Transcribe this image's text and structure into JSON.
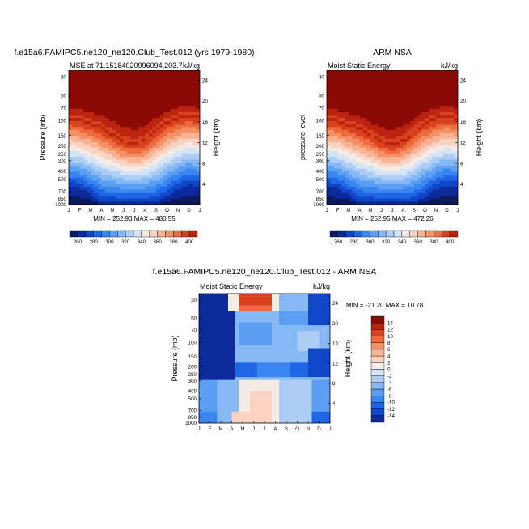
{
  "colors": {
    "palette": [
      "#0a1a5c",
      "#0c2a9c",
      "#1046c8",
      "#1f66e6",
      "#3a86f0",
      "#5c9ff2",
      "#86b8f4",
      "#aecdf5",
      "#d4e4f7",
      "#f4ece4",
      "#fad2c2",
      "#f7b394",
      "#f39064",
      "#ec6a3e",
      "#d9421f",
      "#bb2411",
      "#8c0a06"
    ]
  },
  "chart_data": [
    {
      "id": "model",
      "type": "heatmap",
      "panel_title": "f.e15a6.FAMIPC5.ne120_ne120.Club_Test.012 (yrs 1979-1980)",
      "left_title": "MSE at 71.15184020996094,203.7",
      "right_title": "kJ/kg",
      "ylabel": "Pressure (mb)",
      "y2label": "Height (km)",
      "x_ticks": [
        "J",
        "F",
        "M",
        "A",
        "M",
        "J",
        "J",
        "A",
        "S",
        "O",
        "N",
        "D",
        "J"
      ],
      "y_ticks": [
        30,
        50,
        70,
        100,
        150,
        200,
        250,
        300,
        400,
        500,
        700,
        850,
        1000
      ],
      "y2_ticks": [
        24,
        20,
        16,
        12,
        8,
        4
      ],
      "min_max": "MIN = 252.93  MAX = 480.55",
      "colorbar_labels": [
        "260",
        "280",
        "300",
        "320",
        "340",
        "360",
        "380",
        "400"
      ],
      "colorbar_levels": [
        250,
        400
      ],
      "tropopause_pressure_mb": [
        90,
        95,
        105,
        115,
        140,
        170,
        185,
        165,
        125,
        100,
        88,
        82,
        90
      ],
      "surface_minimum_pressure_mb": [
        650,
        680,
        800,
        1000,
        1000,
        1000,
        1000,
        1000,
        1000,
        850,
        700,
        620,
        650
      ]
    },
    {
      "id": "obs",
      "type": "heatmap",
      "panel_title": "ARM NSA",
      "left_title": "Moist Static Energy",
      "right_title": "kJ/kg",
      "ylabel": "pressure level",
      "y2label": "Height (km)",
      "x_ticks": [
        "J",
        "F",
        "M",
        "A",
        "M",
        "J",
        "J",
        "A",
        "S",
        "O",
        "N",
        "D",
        "J"
      ],
      "y_ticks": [
        30,
        50,
        70,
        100,
        150,
        200,
        250,
        300,
        400,
        500,
        700,
        850,
        1000
      ],
      "y2_ticks": [
        24,
        20,
        16,
        12,
        8,
        4
      ],
      "min_max": "MIN = 252.95  MAX = 472.26",
      "colorbar_labels": [
        "260",
        "280",
        "300",
        "320",
        "340",
        "360",
        "380",
        "400"
      ],
      "colorbar_levels": [
        250,
        400
      ],
      "tropopause_pressure_mb": [
        92,
        96,
        108,
        118,
        142,
        172,
        186,
        168,
        128,
        102,
        90,
        84,
        92
      ],
      "surface_minimum_pressure_mb": [
        650,
        690,
        820,
        1000,
        1000,
        1000,
        1000,
        1000,
        1000,
        860,
        700,
        630,
        650
      ]
    },
    {
      "id": "diff",
      "type": "heatmap",
      "panel_title": "f.e15a6.FAMIPC5.ne120_ne120.Club_Test.012 - ARM NSA",
      "left_title": "Moist Static Energy",
      "right_title": "kJ/kg",
      "ylabel": "Pressure (mb)",
      "y2label": "Height (km)",
      "x_ticks": [
        "J",
        "F",
        "M",
        "A",
        "M",
        "J",
        "J",
        "A",
        "S",
        "O",
        "N",
        "D",
        "J"
      ],
      "y_ticks": [
        30,
        50,
        70,
        100,
        150,
        200,
        250,
        300,
        400,
        500,
        700,
        850,
        1000
      ],
      "y2_ticks": [
        24,
        20,
        16,
        12,
        8,
        4
      ],
      "min_max": "MIN = -21.20  MAX =  10.78",
      "colorbar_labels": [
        "14",
        "12",
        "10",
        "8",
        "6",
        "4",
        "2",
        "0",
        "-2",
        "-4",
        "-6",
        "-8",
        "-10",
        "-12",
        "-14"
      ],
      "colorbar_levels": [
        -15,
        15
      ]
    }
  ]
}
